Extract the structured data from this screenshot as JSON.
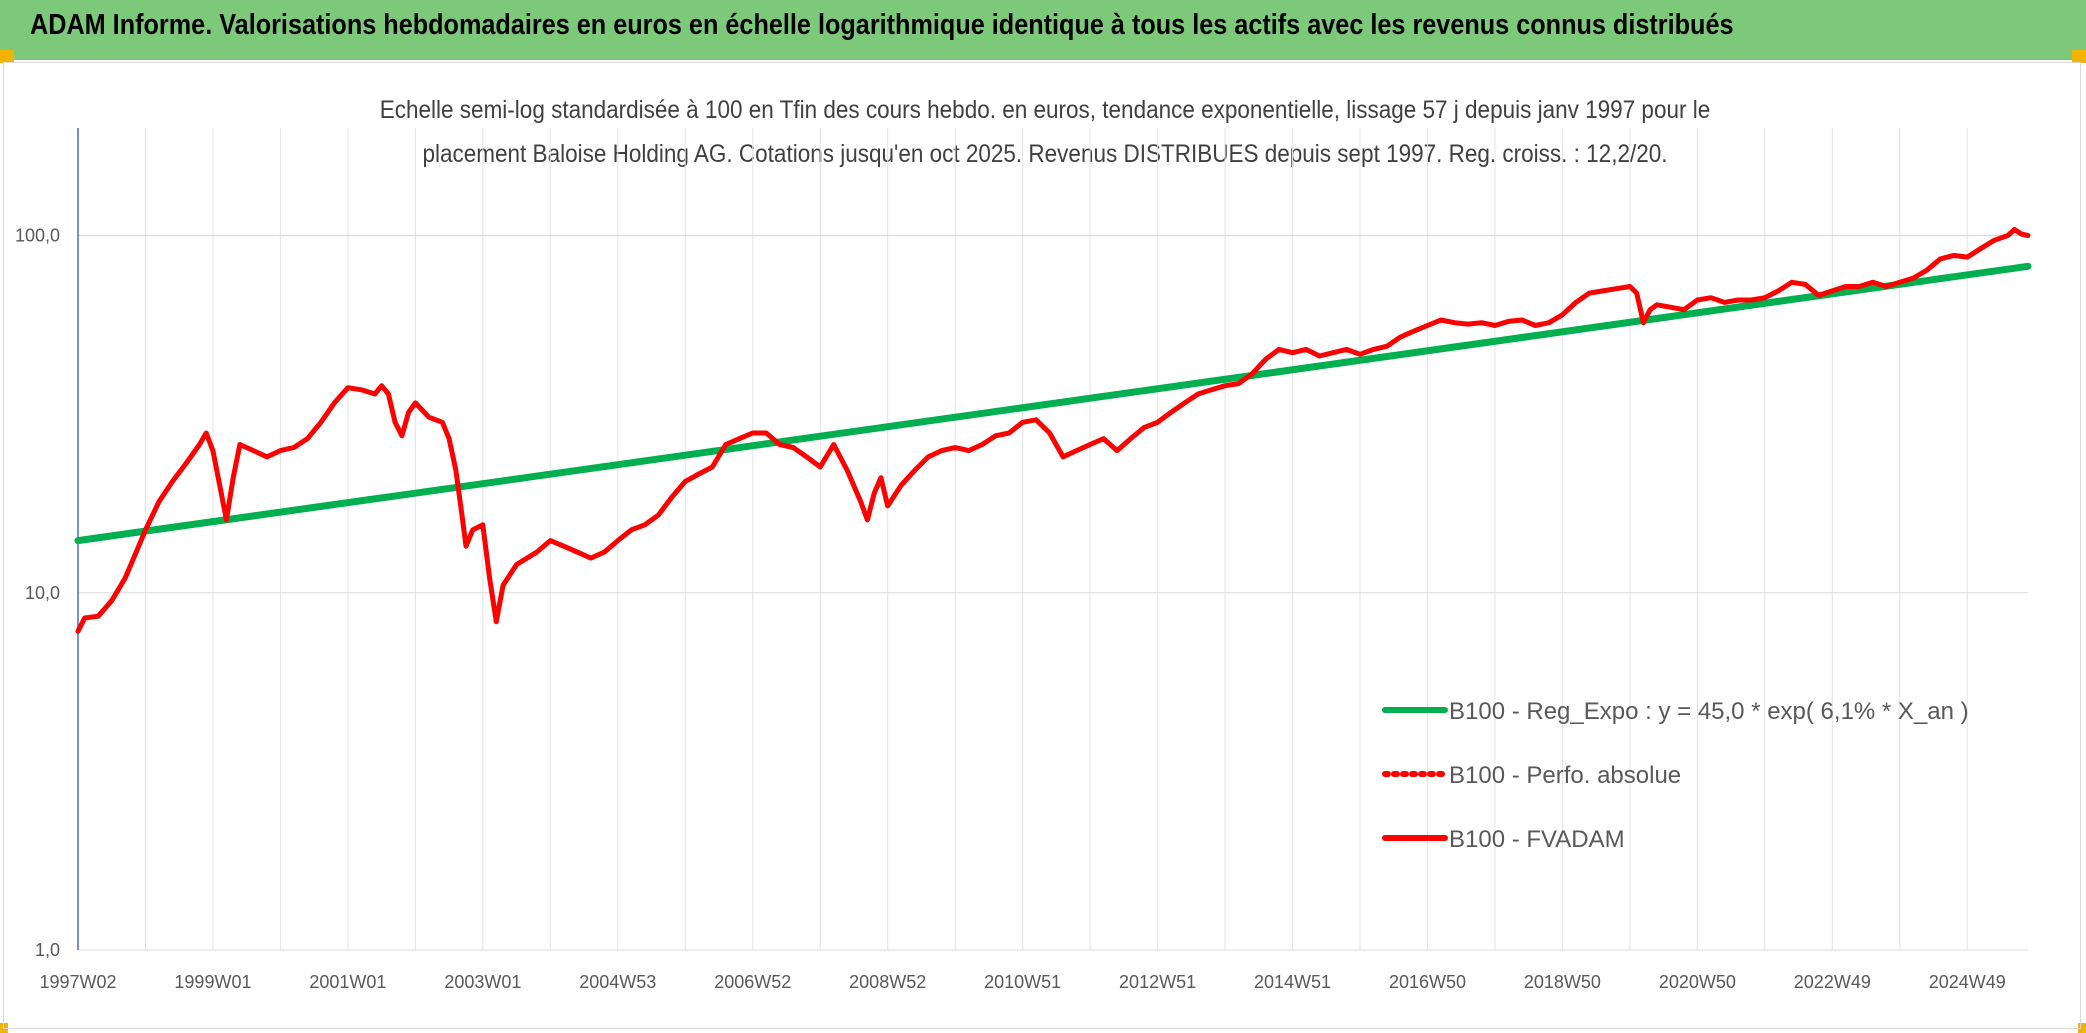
{
  "banner": {
    "title": "ADAM Informe. Valorisations hebdomadaires en euros en échelle logarithmique identique à tous les actifs avec les revenus connus distribués",
    "color": "#7dc97a"
  },
  "chart_data": {
    "type": "line",
    "title_line1": "Echelle semi-log standardisée à 100 en Tfin des cours hebdo. en euros, tendance exponentielle, lissage 57 j depuis janv 1997 pour le",
    "title_line2": "placement Baloise Holding AG. Cotations jusqu'en oct 2025. Revenus DISTRIBUES depuis sept 1997. Reg. croiss. : 12,2/20.",
    "yscale": "log",
    "ylim": [
      1,
      200
    ],
    "yticks": [
      {
        "value": 1,
        "label": "1,0"
      },
      {
        "value": 10,
        "label": "10,0"
      },
      {
        "value": 100,
        "label": "100,0"
      }
    ],
    "xlim": [
      1997.0,
      2025.9
    ],
    "xticks": [
      {
        "x": 1997.0,
        "label": "1997W02"
      },
      {
        "x": 1999.0,
        "label": "1999W01"
      },
      {
        "x": 2001.0,
        "label": "2001W01"
      },
      {
        "x": 2003.0,
        "label": "2003W01"
      },
      {
        "x": 2005.0,
        "label": "2004W53"
      },
      {
        "x": 2007.0,
        "label": "2006W52"
      },
      {
        "x": 2009.0,
        "label": "2008W52"
      },
      {
        "x": 2011.0,
        "label": "2010W51"
      },
      {
        "x": 2013.0,
        "label": "2012W51"
      },
      {
        "x": 2015.0,
        "label": "2014W51"
      },
      {
        "x": 2017.0,
        "label": "2016W50"
      },
      {
        "x": 2019.0,
        "label": "2018W50"
      },
      {
        "x": 2021.0,
        "label": "2020W50"
      },
      {
        "x": 2023.0,
        "label": "2022W49"
      },
      {
        "x": 2025.0,
        "label": "2024W49"
      }
    ],
    "grid": true,
    "legend_position": "bottom-right",
    "series": [
      {
        "name": "B100 - Reg_Expo : y = 45,0 * exp( 6,1% *  X_an )",
        "color": "#00b050",
        "style": "solid",
        "points": [
          [
            1997.0,
            14.0
          ],
          [
            2025.9,
            82.0
          ]
        ]
      },
      {
        "name": "B100 - Perfo. absolue",
        "color": "#ff0000",
        "style": "dotted",
        "points": []
      },
      {
        "name": "B100 - FVADAM",
        "color": "#ff0000",
        "style": "solid",
        "points": [
          [
            1997.0,
            7.8
          ],
          [
            1997.1,
            8.5
          ],
          [
            1997.3,
            8.6
          ],
          [
            1997.5,
            9.5
          ],
          [
            1997.7,
            11.0
          ],
          [
            1997.9,
            13.5
          ],
          [
            1998.0,
            15.0
          ],
          [
            1998.2,
            18.0
          ],
          [
            1998.4,
            20.5
          ],
          [
            1998.6,
            23.0
          ],
          [
            1998.8,
            26.0
          ],
          [
            1998.9,
            28.0
          ],
          [
            1999.0,
            25.0
          ],
          [
            1999.1,
            20.0
          ],
          [
            1999.2,
            16.0
          ],
          [
            1999.3,
            21.0
          ],
          [
            1999.4,
            26.0
          ],
          [
            1999.6,
            25.0
          ],
          [
            1999.8,
            24.0
          ],
          [
            2000.0,
            25.0
          ],
          [
            2000.2,
            25.5
          ],
          [
            2000.4,
            27.0
          ],
          [
            2000.6,
            30.0
          ],
          [
            2000.8,
            34.0
          ],
          [
            2001.0,
            37.5
          ],
          [
            2001.2,
            37.0
          ],
          [
            2001.4,
            36.0
          ],
          [
            2001.5,
            38.0
          ],
          [
            2001.6,
            36.0
          ],
          [
            2001.7,
            30.0
          ],
          [
            2001.8,
            27.5
          ],
          [
            2001.9,
            32.0
          ],
          [
            2002.0,
            34.0
          ],
          [
            2002.2,
            31.0
          ],
          [
            2002.4,
            30.0
          ],
          [
            2002.5,
            27.0
          ],
          [
            2002.6,
            22.0
          ],
          [
            2002.7,
            16.0
          ],
          [
            2002.75,
            13.5
          ],
          [
            2002.85,
            15.0
          ],
          [
            2003.0,
            15.5
          ],
          [
            2003.1,
            11.0
          ],
          [
            2003.2,
            8.3
          ],
          [
            2003.3,
            10.5
          ],
          [
            2003.5,
            12.0
          ],
          [
            2003.8,
            13.0
          ],
          [
            2004.0,
            14.0
          ],
          [
            2004.2,
            13.5
          ],
          [
            2004.4,
            13.0
          ],
          [
            2004.6,
            12.5
          ],
          [
            2004.8,
            13.0
          ],
          [
            2005.0,
            14.0
          ],
          [
            2005.2,
            15.0
          ],
          [
            2005.4,
            15.5
          ],
          [
            2005.6,
            16.5
          ],
          [
            2005.8,
            18.5
          ],
          [
            2006.0,
            20.5
          ],
          [
            2006.2,
            21.5
          ],
          [
            2006.4,
            22.5
          ],
          [
            2006.6,
            26.0
          ],
          [
            2006.8,
            27.0
          ],
          [
            2007.0,
            28.0
          ],
          [
            2007.2,
            28.0
          ],
          [
            2007.4,
            26.0
          ],
          [
            2007.6,
            25.5
          ],
          [
            2007.8,
            24.0
          ],
          [
            2008.0,
            22.5
          ],
          [
            2008.2,
            26.0
          ],
          [
            2008.4,
            22.0
          ],
          [
            2008.6,
            18.0
          ],
          [
            2008.7,
            16.0
          ],
          [
            2008.8,
            19.0
          ],
          [
            2008.9,
            21.0
          ],
          [
            2009.0,
            17.5
          ],
          [
            2009.2,
            20.0
          ],
          [
            2009.4,
            22.0
          ],
          [
            2009.6,
            24.0
          ],
          [
            2009.8,
            25.0
          ],
          [
            2010.0,
            25.5
          ],
          [
            2010.2,
            25.0
          ],
          [
            2010.4,
            26.0
          ],
          [
            2010.6,
            27.5
          ],
          [
            2010.8,
            28.0
          ],
          [
            2011.0,
            30.0
          ],
          [
            2011.2,
            30.5
          ],
          [
            2011.4,
            28.0
          ],
          [
            2011.6,
            24.0
          ],
          [
            2011.8,
            25.0
          ],
          [
            2012.0,
            26.0
          ],
          [
            2012.2,
            27.0
          ],
          [
            2012.4,
            25.0
          ],
          [
            2012.6,
            27.0
          ],
          [
            2012.8,
            29.0
          ],
          [
            2013.0,
            30.0
          ],
          [
            2013.2,
            32.0
          ],
          [
            2013.4,
            34.0
          ],
          [
            2013.6,
            36.0
          ],
          [
            2013.8,
            37.0
          ],
          [
            2014.0,
            38.0
          ],
          [
            2014.2,
            38.5
          ],
          [
            2014.4,
            41.0
          ],
          [
            2014.6,
            45.0
          ],
          [
            2014.8,
            48.0
          ],
          [
            2015.0,
            47.0
          ],
          [
            2015.2,
            48.0
          ],
          [
            2015.4,
            46.0
          ],
          [
            2015.6,
            47.0
          ],
          [
            2015.8,
            48.0
          ],
          [
            2016.0,
            46.5
          ],
          [
            2016.2,
            48.0
          ],
          [
            2016.4,
            49.0
          ],
          [
            2016.6,
            52.0
          ],
          [
            2016.8,
            54.0
          ],
          [
            2017.0,
            56.0
          ],
          [
            2017.2,
            58.0
          ],
          [
            2017.4,
            57.0
          ],
          [
            2017.6,
            56.5
          ],
          [
            2017.8,
            57.0
          ],
          [
            2018.0,
            56.0
          ],
          [
            2018.2,
            57.5
          ],
          [
            2018.4,
            58.0
          ],
          [
            2018.6,
            56.0
          ],
          [
            2018.8,
            57.0
          ],
          [
            2019.0,
            60.0
          ],
          [
            2019.2,
            65.0
          ],
          [
            2019.4,
            69.0
          ],
          [
            2019.6,
            70.0
          ],
          [
            2019.8,
            71.0
          ],
          [
            2020.0,
            72.0
          ],
          [
            2020.1,
            69.0
          ],
          [
            2020.2,
            57.0
          ],
          [
            2020.3,
            62.0
          ],
          [
            2020.4,
            64.0
          ],
          [
            2020.6,
            63.0
          ],
          [
            2020.8,
            62.0
          ],
          [
            2021.0,
            66.0
          ],
          [
            2021.2,
            67.0
          ],
          [
            2021.4,
            65.0
          ],
          [
            2021.6,
            66.0
          ],
          [
            2021.8,
            66.0
          ],
          [
            2022.0,
            67.0
          ],
          [
            2022.2,
            70.0
          ],
          [
            2022.4,
            74.0
          ],
          [
            2022.6,
            73.0
          ],
          [
            2022.8,
            68.0
          ],
          [
            2023.0,
            70.0
          ],
          [
            2023.2,
            72.0
          ],
          [
            2023.4,
            72.0
          ],
          [
            2023.6,
            74.0
          ],
          [
            2023.8,
            72.0
          ],
          [
            2024.0,
            74.0
          ],
          [
            2024.2,
            76.0
          ],
          [
            2024.4,
            80.0
          ],
          [
            2024.6,
            86.0
          ],
          [
            2024.8,
            88.0
          ],
          [
            2025.0,
            87.0
          ],
          [
            2025.2,
            92.0
          ],
          [
            2025.4,
            97.0
          ],
          [
            2025.6,
            100.0
          ],
          [
            2025.7,
            104.0
          ],
          [
            2025.8,
            101.0
          ],
          [
            2025.9,
            100.0
          ]
        ]
      }
    ]
  }
}
